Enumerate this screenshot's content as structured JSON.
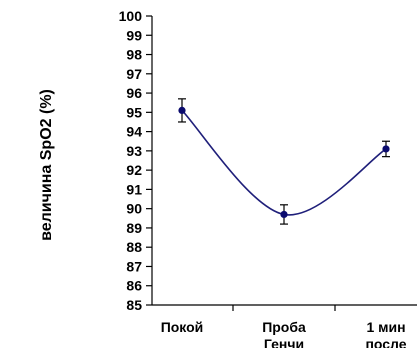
{
  "chart_data": {
    "type": "line",
    "ylabel": "величина SpO2 (%)",
    "categories": [
      [
        "Покой"
      ],
      [
        "Проба",
        "Генчи"
      ],
      [
        "1 мин",
        "после"
      ]
    ],
    "values": [
      95.1,
      89.7,
      93.1
    ],
    "errors": [
      0.6,
      0.5,
      0.4
    ],
    "ylim": [
      85,
      100
    ],
    "ytick_step": 1,
    "grid": false,
    "smoothed": true,
    "line_color": "#1f1f7a",
    "marker_color": "#0b0b6e"
  }
}
